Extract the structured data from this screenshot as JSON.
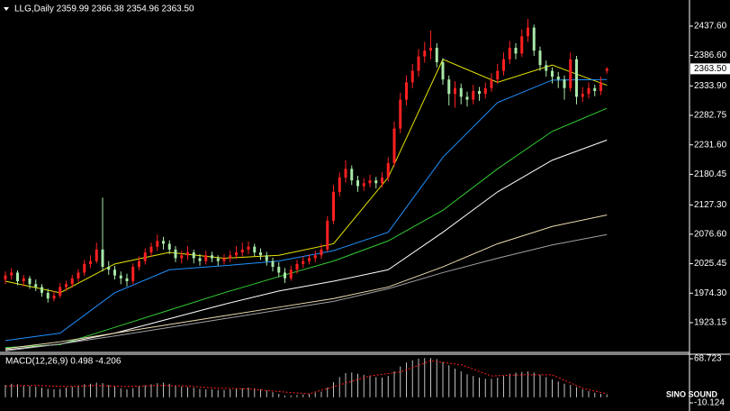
{
  "chart_data": {
    "type": "candlestick",
    "title": "LLG,Daily  2359.99 2366.38 2354.96 2363.50",
    "up_color": "#ff2020",
    "down_color": "#a8e8a8",
    "ylim": [
      1873.1,
      2482.9
    ],
    "yticks": [
      {
        "value": 2437.6,
        "label": "2437.60"
      },
      {
        "value": 2386.6,
        "label": "2386.60"
      },
      {
        "value": 2333.9,
        "label": "2333.90"
      },
      {
        "value": 2282.75,
        "label": "2282.75"
      },
      {
        "value": 2231.6,
        "label": "2231.60"
      },
      {
        "value": 2180.45,
        "label": "2180.45"
      },
      {
        "value": 2127.3,
        "label": "2127.30"
      },
      {
        "value": 2076.6,
        "label": "2076.60"
      },
      {
        "value": 2025.45,
        "label": "2025.45"
      },
      {
        "value": 1974.3,
        "label": "1974.30"
      },
      {
        "value": 1923.15,
        "label": "1923.15"
      }
    ],
    "last_price": {
      "value": 2363.5,
      "label": "2363.50"
    },
    "open": [
      1998,
      2005,
      2010,
      1995,
      2000,
      1990,
      1985,
      1975,
      1965,
      1970,
      1985,
      1990,
      2000,
      2010,
      2025,
      2030,
      2050,
      2020,
      2015,
      2005,
      2000,
      1995,
      2020,
      2030,
      2045,
      2055,
      2065,
      2060,
      2050,
      2035,
      2040,
      2045,
      2035,
      2030,
      2040,
      2035,
      2030,
      2035,
      2040,
      2045,
      2050,
      2055,
      2045,
      2040,
      2030,
      2020,
      2010,
      2000,
      2015,
      2025,
      2030,
      2035,
      2040,
      2050,
      2100,
      2150,
      2175,
      2190,
      2170,
      2160,
      2165,
      2170,
      2165,
      2175,
      2200,
      2260,
      2310,
      2340,
      2360,
      2385,
      2395,
      2400,
      2375,
      2345,
      2320,
      2330,
      2315,
      2310,
      2325,
      2320,
      2330,
      2345,
      2360,
      2380,
      2400,
      2390,
      2420,
      2435,
      2395,
      2370,
      2360,
      2350,
      2345,
      2330,
      2380,
      2315,
      2320,
      2330,
      2325,
      2359.99
    ],
    "high": [
      2012,
      2018,
      2014,
      2006,
      2004,
      1998,
      1990,
      1982,
      1978,
      1992,
      1996,
      2006,
      2016,
      2032,
      2040,
      2062,
      2140,
      2030,
      2022,
      2012,
      2008,
      2026,
      2038,
      2052,
      2062,
      2076,
      2072,
      2066,
      2056,
      2048,
      2056,
      2050,
      2042,
      2048,
      2046,
      2040,
      2042,
      2048,
      2056,
      2062,
      2064,
      2060,
      2052,
      2046,
      2036,
      2028,
      2018,
      2022,
      2032,
      2038,
      2042,
      2048,
      2060,
      2108,
      2162,
      2184,
      2205,
      2196,
      2178,
      2174,
      2180,
      2176,
      2184,
      2210,
      2272,
      2322,
      2352,
      2372,
      2398,
      2410,
      2430,
      2408,
      2382,
      2352,
      2342,
      2338,
      2324,
      2336,
      2332,
      2340,
      2356,
      2372,
      2392,
      2412,
      2408,
      2432,
      2450,
      2440,
      2402,
      2378,
      2366,
      2358,
      2352,
      2392,
      2386,
      2332,
      2340,
      2336,
      2350,
      2366.38
    ],
    "low": [
      1990,
      1998,
      1988,
      1986,
      1982,
      1978,
      1968,
      1958,
      1960,
      1966,
      1978,
      1984,
      1994,
      2004,
      2018,
      2026,
      2012,
      2006,
      1998,
      1990,
      1986,
      1990,
      2014,
      2024,
      2038,
      2048,
      2050,
      2042,
      2028,
      2026,
      2032,
      2026,
      2022,
      2024,
      2028,
      2022,
      2024,
      2028,
      2034,
      2038,
      2042,
      2038,
      2032,
      2022,
      2012,
      2002,
      1992,
      1996,
      2008,
      2018,
      2024,
      2028,
      2034,
      2046,
      2094,
      2142,
      2166,
      2162,
      2150,
      2152,
      2158,
      2156,
      2158,
      2168,
      2194,
      2252,
      2300,
      2330,
      2350,
      2374,
      2380,
      2366,
      2336,
      2300,
      2296,
      2302,
      2298,
      2302,
      2308,
      2312,
      2324,
      2338,
      2352,
      2372,
      2380,
      2384,
      2410,
      2386,
      2360,
      2350,
      2338,
      2330,
      2310,
      2324,
      2302,
      2306,
      2312,
      2316,
      2318,
      2354.96
    ],
    "close": [
      2005,
      2010,
      1995,
      2000,
      1990,
      1985,
      1975,
      1965,
      1970,
      1985,
      1990,
      2000,
      2010,
      2025,
      2030,
      2050,
      2020,
      2015,
      2005,
      2000,
      1995,
      2020,
      2030,
      2045,
      2055,
      2065,
      2060,
      2050,
      2035,
      2040,
      2045,
      2035,
      2030,
      2040,
      2035,
      2030,
      2035,
      2040,
      2045,
      2050,
      2055,
      2045,
      2040,
      2030,
      2020,
      2010,
      2000,
      2015,
      2025,
      2030,
      2035,
      2040,
      2050,
      2100,
      2150,
      2175,
      2190,
      2170,
      2160,
      2165,
      2170,
      2165,
      2175,
      2200,
      2260,
      2310,
      2340,
      2360,
      2385,
      2395,
      2400,
      2375,
      2345,
      2320,
      2330,
      2315,
      2310,
      2325,
      2320,
      2330,
      2345,
      2360,
      2380,
      2400,
      2390,
      2420,
      2435,
      2395,
      2370,
      2360,
      2350,
      2345,
      2330,
      2380,
      2315,
      2320,
      2330,
      2325,
      2340,
      2363.5
    ],
    "ma_x": [
      0,
      9,
      18,
      27,
      36,
      45,
      54,
      63,
      72,
      81,
      90,
      99
    ],
    "moving_averages": [
      {
        "color": "#e6e600",
        "values": [
          1995,
          1975,
          2025,
          2045,
          2035,
          2040,
          2060,
          2175,
          2380,
          2340,
          2370,
          2335
        ]
      },
      {
        "color": "#1e90ff",
        "values": [
          1892,
          1905,
          1975,
          2015,
          2022,
          2030,
          2048,
          2080,
          2210,
          2305,
          2344,
          2345
        ]
      },
      {
        "color": "#32cd32",
        "values": [
          1880,
          1885,
          1915,
          1945,
          1975,
          2003,
          2030,
          2065,
          2118,
          2190,
          2255,
          2295
        ]
      },
      {
        "color": "#ffffff",
        "values": [
          1876,
          1886,
          1905,
          1930,
          1955,
          1978,
          1995,
          2015,
          2080,
          2150,
          2205,
          2240
        ]
      },
      {
        "color": "#eedcb0",
        "values": [
          1878,
          1890,
          1905,
          1920,
          1935,
          1950,
          1965,
          1985,
          2020,
          2060,
          2090,
          2110
        ]
      },
      {
        "color": "#a0a0a0",
        "values": [
          1874,
          1886,
          1900,
          1915,
          1930,
          1945,
          1960,
          1982,
          2010,
          2035,
          2058,
          2076
        ]
      }
    ],
    "macd_title": "MACD(12,26,9) 0.498 -4.206",
    "macd_ylim": [
      -24.6,
      76.8
    ],
    "macd_yticks": [
      68.723,
      -10.124
    ],
    "macd_color": "#c0c0c0",
    "signal_color": "#ff2020",
    "macd_values": [
      22,
      24,
      23,
      21,
      20,
      19,
      17,
      15,
      14,
      15,
      17,
      19,
      21,
      23,
      24,
      26,
      25,
      22,
      19,
      16,
      14,
      16,
      19,
      21,
      23,
      25,
      26,
      24,
      21,
      19,
      18,
      17,
      15,
      14,
      14,
      13,
      13,
      14,
      15,
      16,
      17,
      16,
      14,
      12,
      9,
      6,
      3,
      3,
      4,
      5,
      6,
      8,
      10,
      17,
      27,
      36,
      43,
      44,
      42,
      40,
      38,
      36,
      35,
      38,
      46,
      55,
      62,
      66,
      69,
      70,
      70,
      68,
      63,
      57,
      51,
      46,
      41,
      38,
      35,
      33,
      33,
      35,
      38,
      42,
      44,
      45,
      46,
      44,
      40,
      36,
      32,
      28,
      24,
      22,
      18,
      14,
      11,
      8,
      6,
      5
    ],
    "signal_x": [
      0,
      5,
      10,
      15,
      20,
      25,
      30,
      35,
      40,
      45,
      50,
      55,
      60,
      65,
      70,
      75,
      80,
      85,
      90,
      95,
      99
    ],
    "signal_values": [
      20,
      21,
      19,
      21,
      19,
      21,
      20,
      16,
      15,
      10,
      6,
      22,
      38,
      45,
      65,
      58,
      38,
      40,
      40,
      16,
      6
    ],
    "watermark": "SINO SOUND"
  }
}
